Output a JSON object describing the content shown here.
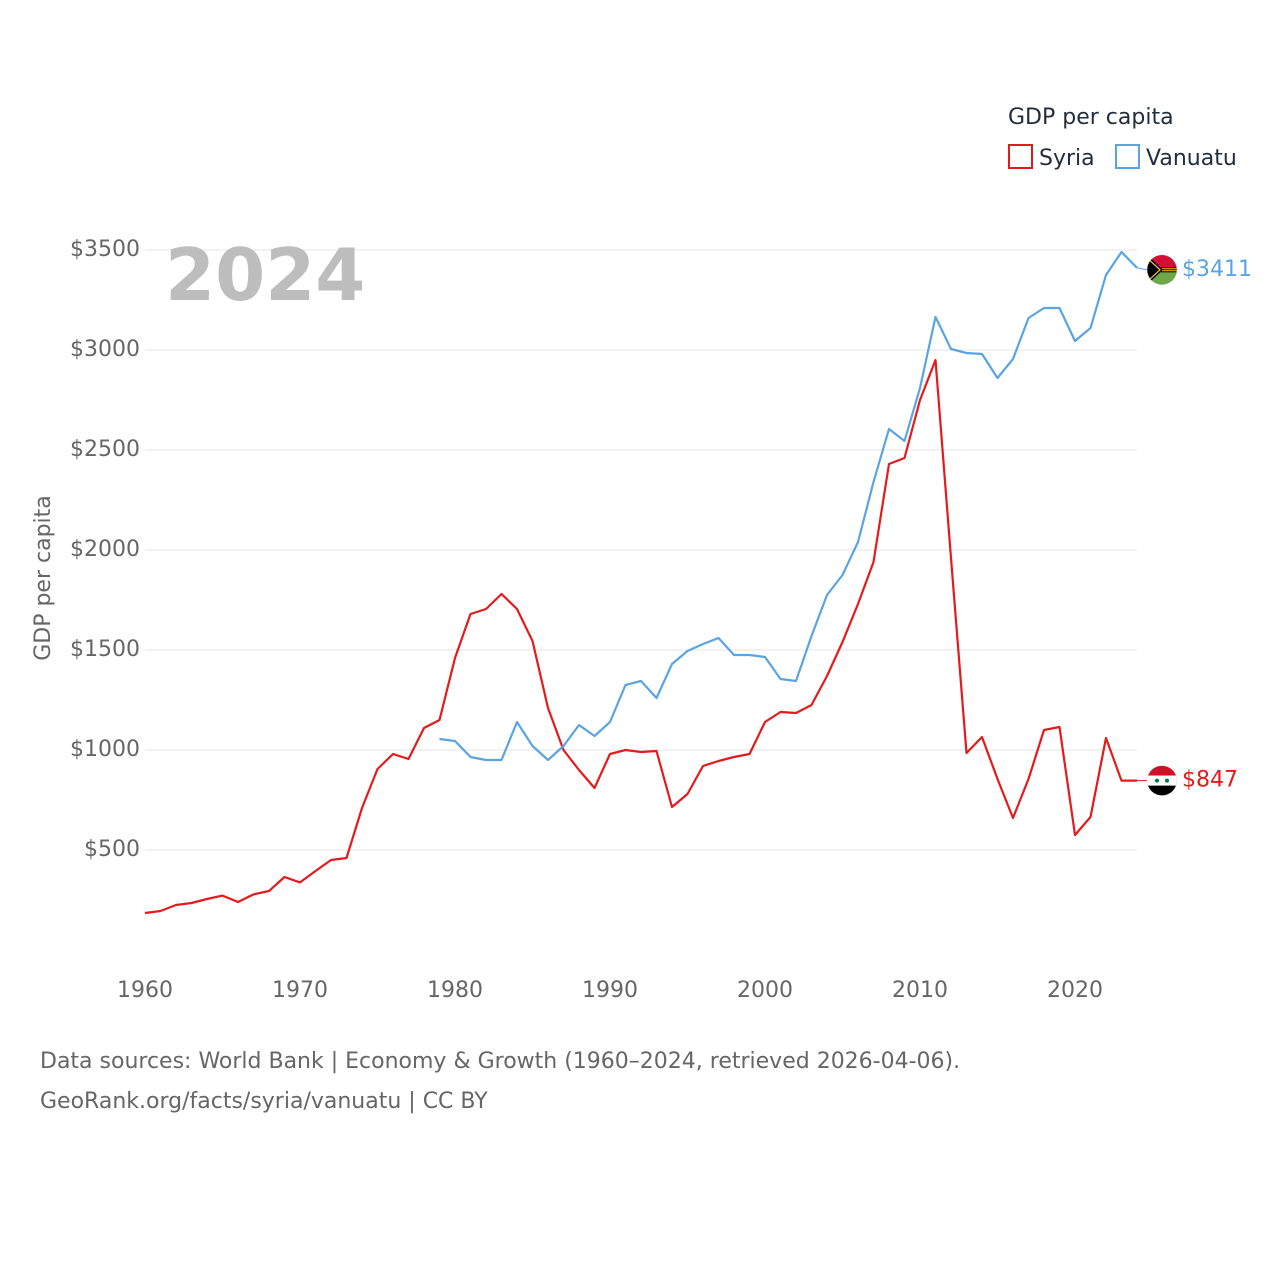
{
  "chart_data": {
    "type": "line",
    "legend_title": "GDP per capita",
    "ylabel": "GDP per capita",
    "year_label": "2024",
    "x_ticks": [
      "1960",
      "1970",
      "1980",
      "1990",
      "2000",
      "2010",
      "2020"
    ],
    "y_ticks": [
      "$500",
      "$1000",
      "$1500",
      "$2000",
      "$2500",
      "$3000",
      "$3500"
    ],
    "xlim": [
      1960,
      2024
    ],
    "ylim": [
      0,
      3600
    ],
    "legend_position": "top-right",
    "series": [
      {
        "name": "Syria",
        "color": "#e41a1c",
        "end_label": "$847",
        "flag": "syria-flag",
        "points": [
          [
            1960,
            185
          ],
          [
            1961,
            195
          ],
          [
            1962,
            225
          ],
          [
            1963,
            235
          ],
          [
            1964,
            255
          ],
          [
            1965,
            272
          ],
          [
            1966,
            240
          ],
          [
            1967,
            278
          ],
          [
            1968,
            295
          ],
          [
            1969,
            365
          ],
          [
            1970,
            338
          ],
          [
            1971,
            395
          ],
          [
            1972,
            450
          ],
          [
            1973,
            460
          ],
          [
            1974,
            710
          ],
          [
            1975,
            905
          ],
          [
            1976,
            980
          ],
          [
            1977,
            955
          ],
          [
            1978,
            1110
          ],
          [
            1979,
            1150
          ],
          [
            1980,
            1460
          ],
          [
            1981,
            1680
          ],
          [
            1982,
            1705
          ],
          [
            1983,
            1780
          ],
          [
            1984,
            1705
          ],
          [
            1985,
            1545
          ],
          [
            1986,
            1210
          ],
          [
            1987,
            1000
          ],
          [
            1988,
            900
          ],
          [
            1989,
            810
          ],
          [
            1990,
            980
          ],
          [
            1991,
            1000
          ],
          [
            1992,
            990
          ],
          [
            1993,
            995
          ],
          [
            1994,
            715
          ],
          [
            1995,
            780
          ],
          [
            1996,
            920
          ],
          [
            1997,
            945
          ],
          [
            1998,
            965
          ],
          [
            1999,
            980
          ],
          [
            2000,
            1140
          ],
          [
            2001,
            1190
          ],
          [
            2002,
            1185
          ],
          [
            2003,
            1225
          ],
          [
            2004,
            1370
          ],
          [
            2005,
            1540
          ],
          [
            2006,
            1730
          ],
          [
            2007,
            1940
          ],
          [
            2008,
            2430
          ],
          [
            2009,
            2460
          ],
          [
            2010,
            2750
          ],
          [
            2011,
            2950
          ],
          [
            2012,
            1960
          ],
          [
            2013,
            985
          ],
          [
            2014,
            1065
          ],
          [
            2015,
            855
          ],
          [
            2016,
            660
          ],
          [
            2017,
            855
          ],
          [
            2018,
            1100
          ],
          [
            2019,
            1115
          ],
          [
            2020,
            575
          ],
          [
            2021,
            665
          ],
          [
            2022,
            1060
          ],
          [
            2023,
            847
          ],
          [
            2024,
            847
          ]
        ]
      },
      {
        "name": "Vanuatu",
        "color": "#5aa4e3",
        "end_label": "$3411",
        "flag": "vanuatu-flag",
        "points": [
          [
            1979,
            1055
          ],
          [
            1980,
            1045
          ],
          [
            1981,
            965
          ],
          [
            1982,
            950
          ],
          [
            1983,
            950
          ],
          [
            1984,
            1140
          ],
          [
            1985,
            1020
          ],
          [
            1986,
            950
          ],
          [
            1987,
            1020
          ],
          [
            1988,
            1125
          ],
          [
            1989,
            1070
          ],
          [
            1990,
            1140
          ],
          [
            1991,
            1325
          ],
          [
            1992,
            1345
          ],
          [
            1993,
            1260
          ],
          [
            1994,
            1430
          ],
          [
            1995,
            1495
          ],
          [
            1996,
            1530
          ],
          [
            1997,
            1560
          ],
          [
            1998,
            1475
          ],
          [
            1999,
            1475
          ],
          [
            2000,
            1465
          ],
          [
            2001,
            1355
          ],
          [
            2002,
            1345
          ],
          [
            2003,
            1570
          ],
          [
            2004,
            1775
          ],
          [
            2005,
            1875
          ],
          [
            2006,
            2040
          ],
          [
            2007,
            2340
          ],
          [
            2008,
            2605
          ],
          [
            2009,
            2545
          ],
          [
            2010,
            2810
          ],
          [
            2011,
            3165
          ],
          [
            2012,
            3005
          ],
          [
            2013,
            2985
          ],
          [
            2014,
            2980
          ],
          [
            2015,
            2860
          ],
          [
            2016,
            2955
          ],
          [
            2017,
            3160
          ],
          [
            2018,
            3210
          ],
          [
            2019,
            3210
          ],
          [
            2020,
            3045
          ],
          [
            2021,
            3110
          ],
          [
            2022,
            3375
          ],
          [
            2023,
            3490
          ],
          [
            2024,
            3411
          ]
        ]
      }
    ]
  },
  "source": {
    "line1": "Data sources: World Bank | Economy & Growth (1960–2024, retrieved 2026-04-06).",
    "line2": "GeoRank.org/facts/syria/vanuatu | CC BY"
  }
}
